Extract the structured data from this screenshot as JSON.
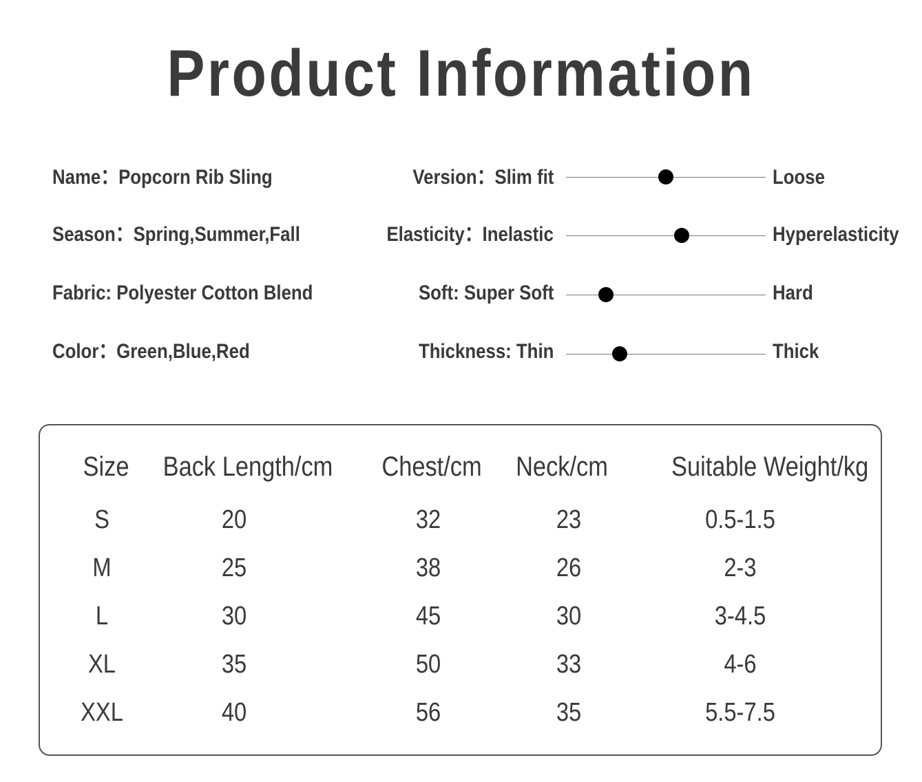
{
  "title": "Product Information",
  "specs": {
    "name": "Name：Popcorn Rib Sling",
    "season": "Season：Spring,Summer,Fall",
    "fabric": "Fabric: Polyester Cotton Blend",
    "color": "Color：Green,Blue,Red"
  },
  "sliders": [
    {
      "label": "Version：Slim fit",
      "end_label": "Loose",
      "level": 0.5
    },
    {
      "label": "Elasticity：Inelastic",
      "end_label": "Hyperelasticity",
      "level": 0.58
    },
    {
      "label": "Soft: Super Soft",
      "end_label": "Hard",
      "level": 0.2
    },
    {
      "label": "Thickness: Thin",
      "end_label": "Thick",
      "level": 0.27
    }
  ],
  "size_table": {
    "headers": [
      "Size",
      "Back Length/cm",
      "Chest/cm",
      "Neck/cm",
      "Suitable Weight/kg"
    ],
    "rows": [
      [
        "S",
        "20",
        "32",
        "23",
        "0.5-1.5"
      ],
      [
        "M",
        "25",
        "38",
        "26",
        "2-3"
      ],
      [
        "L",
        "30",
        "45",
        "30",
        "3-4.5"
      ],
      [
        "XL",
        "35",
        "50",
        "33",
        "4-6"
      ],
      [
        "XXL",
        "40",
        "56",
        "35",
        "5.5-7.5"
      ]
    ]
  }
}
